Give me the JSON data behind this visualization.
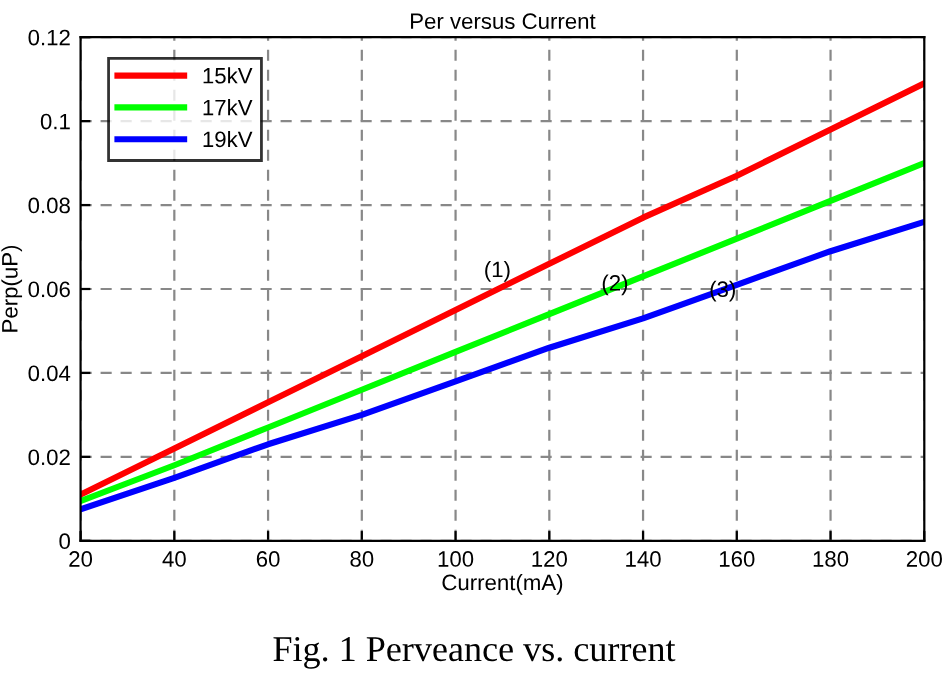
{
  "chart_data": {
    "type": "line",
    "title": "Per versus Current",
    "xlabel": "Current(mA)",
    "ylabel": "Perp(uP)",
    "x": [
      20,
      40,
      60,
      80,
      100,
      120,
      140,
      160,
      180,
      200
    ],
    "series": [
      {
        "name": "15kV",
        "color": "#ff0000",
        "values": [
          0.011,
          0.022,
          0.033,
          0.044,
          0.055,
          0.066,
          0.077,
          0.087,
          0.098,
          0.109
        ]
      },
      {
        "name": "17kV",
        "color": "#00ff00",
        "values": [
          0.0095,
          0.018,
          0.027,
          0.036,
          0.045,
          0.054,
          0.063,
          0.072,
          0.081,
          0.09
        ]
      },
      {
        "name": "19kV",
        "color": "#0000ff",
        "values": [
          0.0075,
          0.015,
          0.023,
          0.03,
          0.038,
          0.046,
          0.053,
          0.061,
          0.069,
          0.076
        ]
      }
    ],
    "xlim": [
      20,
      200
    ],
    "ylim": [
      0,
      0.12
    ],
    "xticks": [
      20,
      40,
      60,
      80,
      100,
      120,
      140,
      160,
      180,
      200
    ],
    "yticks": [
      0,
      0.02,
      0.04,
      0.06,
      0.08,
      0.1,
      0.12
    ],
    "grid": true,
    "legend": "top left",
    "line_style": "solid",
    "marker": "none",
    "annotations": [
      "(1)",
      {
        "text": "(2)",
        "x": 134,
        "y": 0.061
      },
      {
        "text": "(3)",
        "x": 157,
        "y": 0.0595
      },
      "Fig. 1 Perveance vs. current"
    ]
  }
}
